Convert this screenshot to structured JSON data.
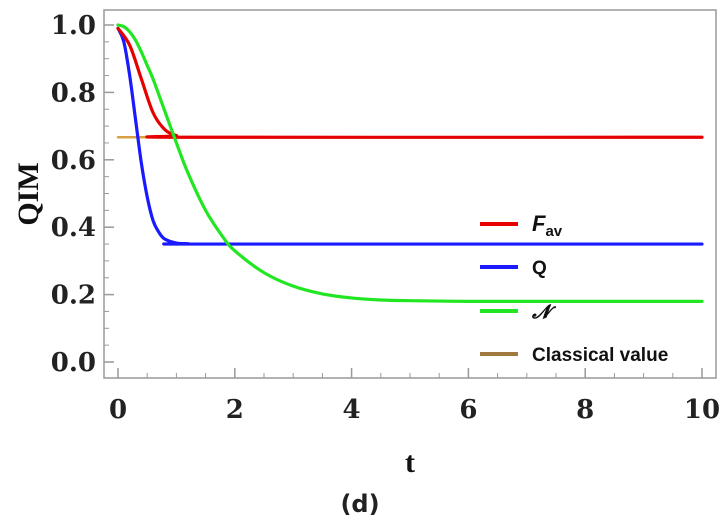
{
  "chart_data": {
    "type": "line",
    "xlabel": "t",
    "ylabel": "QIM",
    "panel_label": "(d)",
    "xlim": [
      0,
      10
    ],
    "ylim": [
      0,
      1.0
    ],
    "x_ticks": [
      "0",
      "2",
      "4",
      "6",
      "8",
      "10"
    ],
    "y_ticks": [
      "0.0",
      "0.2",
      "0.4",
      "0.6",
      "0.8",
      "1.0"
    ],
    "grid": false,
    "legend_position": "right",
    "colors": {
      "F_av": "#e60000",
      "Q": "#1a1aff",
      "N": "#22e622",
      "classical": "#d8a040",
      "classical_legend": "#a07840"
    },
    "series": [
      {
        "name": "F_av",
        "legend_label": "F",
        "legend_subscript": "av",
        "x": [
          0,
          0.2,
          0.4,
          0.6,
          0.8,
          1.0,
          1.2,
          10
        ],
        "y": [
          0.99,
          0.94,
          0.84,
          0.74,
          0.69,
          0.672,
          0.667,
          0.667
        ]
      },
      {
        "name": "Q",
        "legend_label": "Q",
        "x": [
          0,
          0.1,
          0.2,
          0.3,
          0.4,
          0.5,
          0.6,
          0.7,
          0.8,
          1.0,
          1.2,
          1.5,
          10
        ],
        "y": [
          0.99,
          0.95,
          0.85,
          0.72,
          0.59,
          0.49,
          0.42,
          0.385,
          0.365,
          0.353,
          0.351,
          0.35,
          0.35
        ]
      },
      {
        "name": "N",
        "legend_label": "𝓝",
        "x": [
          0,
          0.1,
          0.2,
          0.3,
          0.4,
          0.5,
          0.6,
          0.8,
          1.0,
          1.2,
          1.5,
          1.8,
          2.0,
          2.5,
          3.0,
          3.5,
          4.0,
          4.5,
          5.0,
          6.0,
          7.0,
          10
        ],
        "y": [
          1.0,
          0.995,
          0.98,
          0.955,
          0.92,
          0.88,
          0.84,
          0.745,
          0.65,
          0.56,
          0.45,
          0.37,
          0.33,
          0.265,
          0.225,
          0.202,
          0.19,
          0.184,
          0.182,
          0.18,
          0.18,
          0.18
        ]
      },
      {
        "name": "Classical value",
        "legend_label": "Classical value",
        "x": [
          0,
          10
        ],
        "y": [
          0.667,
          0.667
        ]
      }
    ]
  }
}
